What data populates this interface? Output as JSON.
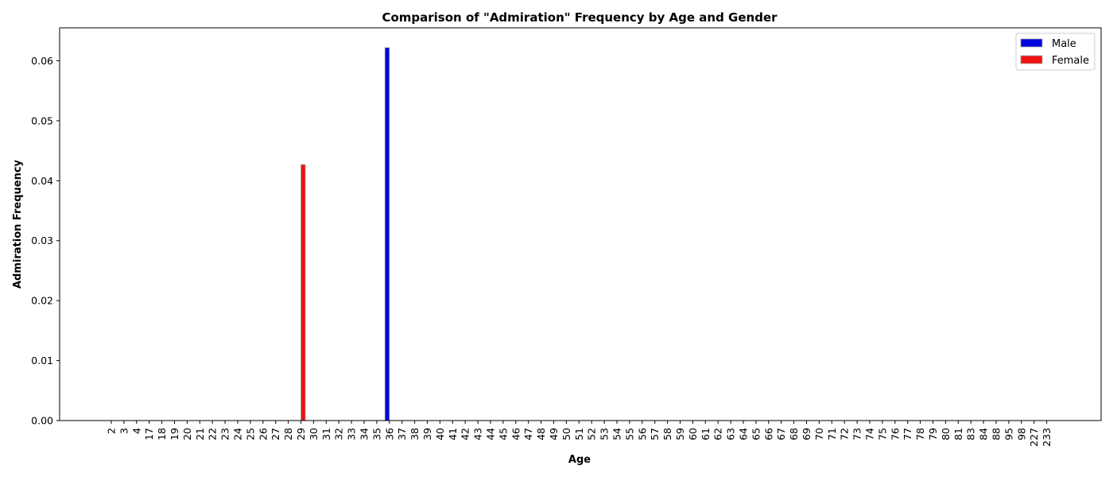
{
  "chart_data": {
    "type": "bar",
    "title": "Comparison of \"Admiration\" Frequency by Age and Gender",
    "xlabel": "Age",
    "ylabel": "Admiration Frequency",
    "ylim": [
      0,
      0.0655
    ],
    "yticks": [
      "0.00",
      "0.01",
      "0.02",
      "0.03",
      "0.04",
      "0.05",
      "0.06"
    ],
    "legend_position": "top-right",
    "grid": false,
    "categories": [
      "2",
      "3",
      "4",
      "17",
      "18",
      "19",
      "20",
      "21",
      "22",
      "23",
      "24",
      "25",
      "26",
      "27",
      "28",
      "29",
      "30",
      "31",
      "32",
      "33",
      "34",
      "35",
      "36",
      "37",
      "38",
      "39",
      "40",
      "41",
      "42",
      "43",
      "44",
      "45",
      "46",
      "47",
      "48",
      "49",
      "50",
      "51",
      "52",
      "53",
      "54",
      "55",
      "56",
      "57",
      "58",
      "59",
      "60",
      "61",
      "62",
      "63",
      "64",
      "65",
      "66",
      "67",
      "68",
      "69",
      "70",
      "71",
      "72",
      "73",
      "74",
      "75",
      "76",
      "77",
      "78",
      "79",
      "80",
      "81",
      "83",
      "84",
      "88",
      "95",
      "98",
      "227",
      "233"
    ],
    "series": [
      {
        "name": "Male",
        "color": "#0000dd",
        "values": [
          0,
          0,
          0,
          0,
          0,
          0,
          0,
          0,
          0,
          0,
          0,
          0,
          0,
          0,
          0,
          0,
          0,
          0,
          0,
          0,
          0,
          0,
          0.0622,
          0,
          0,
          0,
          0,
          0,
          0,
          0,
          0,
          0,
          0,
          0,
          0,
          0,
          0,
          0,
          0,
          0,
          0,
          0,
          0,
          0,
          0,
          0,
          0,
          0,
          0,
          0,
          0,
          0,
          0,
          0,
          0,
          0,
          0,
          0,
          0,
          0,
          0,
          0,
          0,
          0,
          0,
          0,
          0,
          0,
          0,
          0,
          0,
          0,
          0,
          0,
          0
        ]
      },
      {
        "name": "Female",
        "color": "#ee1111",
        "values": [
          0,
          0,
          0,
          0,
          0,
          0,
          0,
          0,
          0,
          0,
          0,
          0,
          0,
          0,
          0,
          0.0427,
          0,
          0,
          0,
          0,
          0,
          0,
          0,
          0,
          0,
          0,
          0,
          0,
          0,
          0,
          0,
          0,
          0,
          0,
          0,
          0,
          0,
          0,
          0,
          0,
          0,
          0,
          0,
          0,
          0,
          0,
          0,
          0,
          0,
          0,
          0,
          0,
          0,
          0,
          0,
          0,
          0,
          0,
          0,
          0,
          0,
          0,
          0,
          0,
          0,
          0,
          0,
          0,
          0,
          0,
          0,
          0,
          0,
          0,
          0
        ]
      }
    ]
  }
}
